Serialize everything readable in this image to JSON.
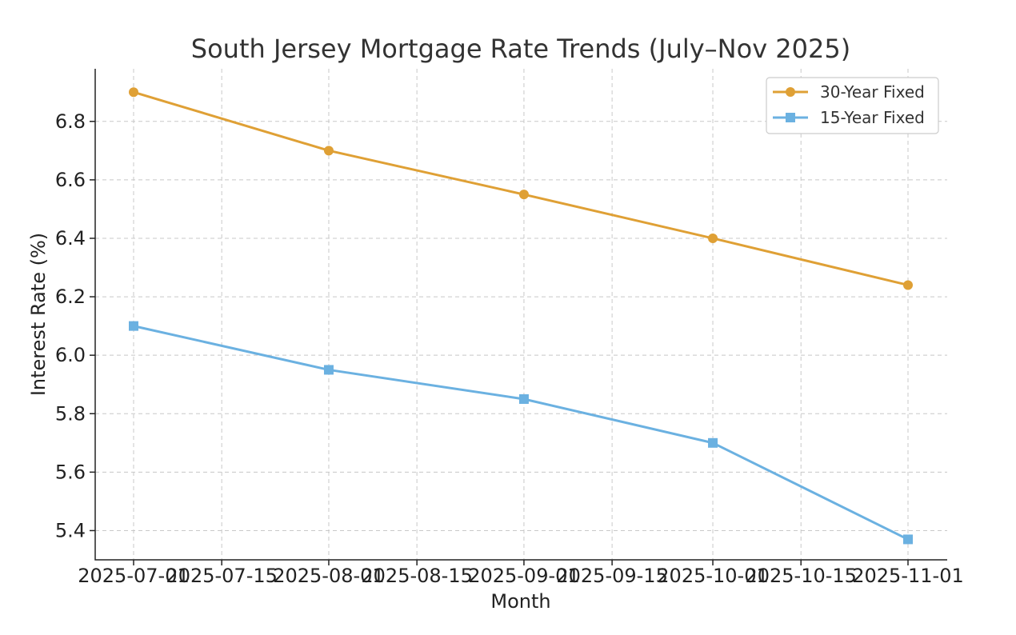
{
  "chart_data": {
    "type": "line",
    "title": "South Jersey Mortgage Rate Trends (July–Nov 2025)",
    "xlabel": "Month",
    "ylabel": "Interest Rate (%)",
    "x": [
      "2025-07-01",
      "2025-08-01",
      "2025-09-01",
      "2025-10-01",
      "2025-11-01"
    ],
    "x_ticks": [
      "2025-07-01",
      "2025-07-15",
      "2025-08-01",
      "2025-08-15",
      "2025-09-01",
      "2025-09-15",
      "2025-10-01",
      "2025-10-15",
      "2025-11-01"
    ],
    "y_ticks": [
      5.4,
      5.6,
      5.8,
      6.0,
      6.2,
      6.4,
      6.6,
      6.8
    ],
    "ylim": [
      5.3,
      6.98
    ],
    "grid": true,
    "legend_position": "top-right",
    "series": [
      {
        "name": "30-Year Fixed",
        "values": [
          6.9,
          6.7,
          6.55,
          6.4,
          6.24
        ],
        "color": "#DFA035",
        "marker": "circle"
      },
      {
        "name": "15-Year Fixed",
        "values": [
          6.1,
          5.95,
          5.85,
          5.7,
          5.37
        ],
        "color": "#6BB1E1",
        "marker": "square"
      }
    ]
  }
}
